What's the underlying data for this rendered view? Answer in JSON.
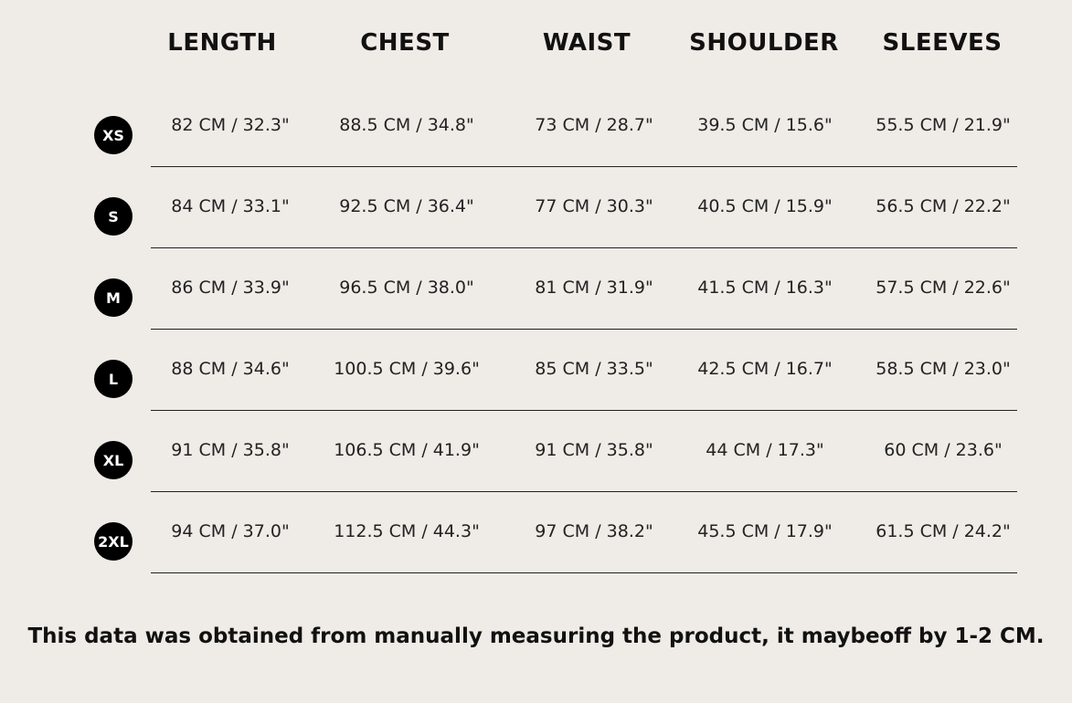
{
  "table": {
    "headers": [
      "LENGTH",
      "CHEST",
      "WAIST",
      "SHOULDER",
      "SLEEVES"
    ],
    "rows": [
      {
        "size": "XS",
        "cells": [
          "82 CM  /  32.3\"",
          "88.5 CM  /  34.8\"",
          "73 CM  /  28.7\"",
          "39.5 CM  /  15.6\"",
          "55.5 CM  /  21.9\""
        ]
      },
      {
        "size": "S",
        "cells": [
          "84 CM  /  33.1\"",
          "92.5 CM  /  36.4\"",
          "77 CM  /  30.3\"",
          "40.5 CM  /  15.9\"",
          "56.5 CM  /  22.2\""
        ]
      },
      {
        "size": "M",
        "cells": [
          "86 CM  /  33.9\"",
          "96.5 CM  /  38.0\"",
          "81 CM  /  31.9\"",
          "41.5 CM  /  16.3\"",
          "57.5 CM  /  22.6\""
        ]
      },
      {
        "size": "L",
        "cells": [
          "88 CM  /  34.6\"",
          "100.5 CM  /  39.6\"",
          "85 CM  /  33.5\"",
          "42.5 CM  /  16.7\"",
          "58.5 CM  /  23.0\""
        ]
      },
      {
        "size": "XL",
        "cells": [
          "91 CM  /  35.8\"",
          "106.5 CM  /  41.9\"",
          "91 CM  /  35.8\"",
          "44 CM  /  17.3\"",
          "60 CM  /  23.6\""
        ]
      },
      {
        "size": "2XL",
        "cells": [
          "94 CM  /  37.0\"",
          "112.5 CM  /  44.3\"",
          "97 CM  /  38.2\"",
          "45.5 CM  /  17.9\"",
          "61.5 CM  /  24.2\""
        ]
      }
    ]
  },
  "note": "This data was obtained from manually measuring the product, it maybeoff by 1-2 CM."
}
